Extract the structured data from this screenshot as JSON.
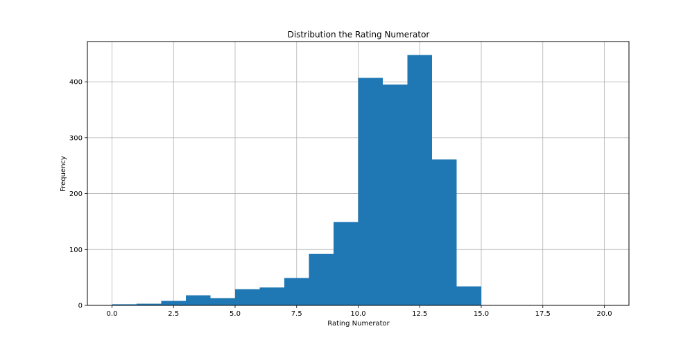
{
  "chart_data": {
    "type": "bar",
    "title": "Distribution the Rating Numerator",
    "xlabel": "Rating Numerator",
    "ylabel": "Frequency",
    "xlim": [
      -1,
      21
    ],
    "ylim": [
      0,
      472
    ],
    "grid": true,
    "bar_color": "#1f77b4",
    "x_ticks": [
      0.0,
      2.5,
      5.0,
      7.5,
      10.0,
      12.5,
      15.0,
      17.5,
      20.0
    ],
    "x_tick_labels": [
      "0.0",
      "2.5",
      "5.0",
      "7.5",
      "10.0",
      "12.5",
      "15.0",
      "17.5",
      "20.0"
    ],
    "y_ticks": [
      0,
      100,
      200,
      300,
      400
    ],
    "y_tick_labels": [
      "0",
      "100",
      "200",
      "300",
      "400"
    ],
    "bins": [
      {
        "start": 0,
        "end": 1,
        "value": 2
      },
      {
        "start": 1,
        "end": 2,
        "value": 3
      },
      {
        "start": 2,
        "end": 3,
        "value": 8
      },
      {
        "start": 3,
        "end": 4,
        "value": 18
      },
      {
        "start": 4,
        "end": 5,
        "value": 13
      },
      {
        "start": 5,
        "end": 6,
        "value": 29
      },
      {
        "start": 6,
        "end": 7,
        "value": 32
      },
      {
        "start": 7,
        "end": 8,
        "value": 49
      },
      {
        "start": 8,
        "end": 9,
        "value": 92
      },
      {
        "start": 9,
        "end": 10,
        "value": 149
      },
      {
        "start": 10,
        "end": 11,
        "value": 407
      },
      {
        "start": 11,
        "end": 12,
        "value": 395
      },
      {
        "start": 12,
        "end": 13,
        "value": 448
      },
      {
        "start": 13,
        "end": 14,
        "value": 261
      },
      {
        "start": 14,
        "end": 15,
        "value": 34
      },
      {
        "start": 15,
        "end": 16,
        "value": 0
      },
      {
        "start": 16,
        "end": 17,
        "value": 0
      },
      {
        "start": 17,
        "end": 18,
        "value": 0
      },
      {
        "start": 18,
        "end": 19,
        "value": 0
      },
      {
        "start": 19,
        "end": 20,
        "value": 0
      }
    ]
  }
}
